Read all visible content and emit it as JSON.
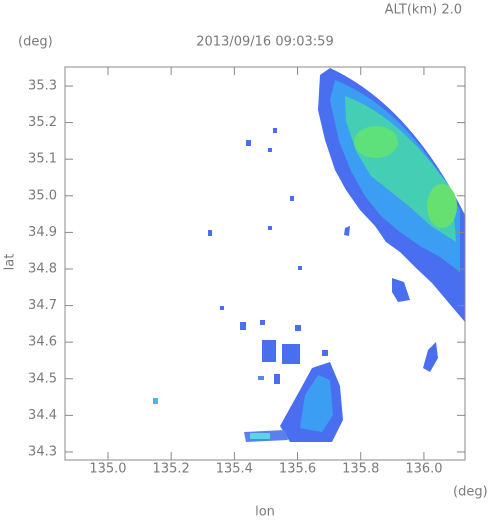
{
  "chart_data": {
    "type": "map",
    "title": "2013/09/16 09:03:59",
    "subtitle": "ALT(km) 2.0",
    "x_label": "lon",
    "y_label": "lat",
    "x_unit": "(deg)",
    "y_unit": "(deg)",
    "xlim": [
      134.864,
      136.13
    ],
    "ylim": [
      34.278,
      35.352
    ],
    "xticks": [
      {
        "value": 135,
        "label": "135.0"
      },
      135.2,
      135.4,
      135.6,
      135.8,
      {
        "value": 136,
        "label": "136.0"
      }
    ],
    "yticks": [
      {
        "value": 34.3,
        "label": "34.3"
      },
      34.4,
      34.5,
      34.6,
      34.7,
      34.8,
      34.9,
      {
        "value": 35,
        "label": "35.0"
      },
      35.1,
      35.2,
      35.3
    ]
  }
}
